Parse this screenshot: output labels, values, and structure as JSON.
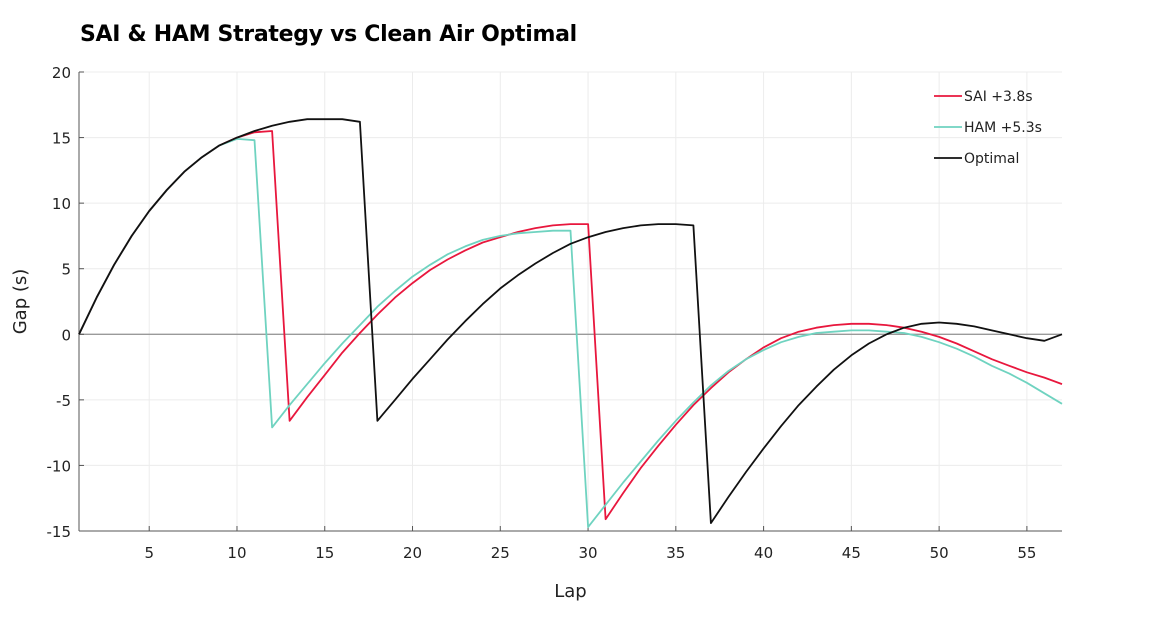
{
  "chart_data": {
    "type": "line",
    "title": "SAI & HAM Strategy vs Clean Air Optimal",
    "xlabel": "Lap",
    "ylabel": "Gap (s)",
    "xlim": [
      1,
      57
    ],
    "ylim": [
      -15,
      20
    ],
    "x_ticks": [
      5,
      10,
      15,
      20,
      25,
      30,
      35,
      40,
      45,
      50,
      55
    ],
    "y_ticks": [
      -15,
      -10,
      -5,
      0,
      5,
      10,
      15,
      20
    ],
    "grid": true,
    "legend_position": "top-right",
    "reference_line_y": 0,
    "series": [
      {
        "name": "SAI +3.8s",
        "color": "#e8173d",
        "points": [
          [
            1,
            0.0
          ],
          [
            2,
            2.8
          ],
          [
            3,
            5.3
          ],
          [
            4,
            7.5
          ],
          [
            5,
            9.4
          ],
          [
            6,
            11.0
          ],
          [
            7,
            12.4
          ],
          [
            8,
            13.5
          ],
          [
            9,
            14.4
          ],
          [
            10,
            15.0
          ],
          [
            11,
            15.4
          ],
          [
            12,
            15.5
          ],
          [
            13,
            -6.6
          ],
          [
            14,
            -4.8
          ],
          [
            15,
            -3.1
          ],
          [
            16,
            -1.4
          ],
          [
            17,
            0.1
          ],
          [
            18,
            1.5
          ],
          [
            19,
            2.8
          ],
          [
            20,
            3.9
          ],
          [
            21,
            4.9
          ],
          [
            22,
            5.7
          ],
          [
            23,
            6.4
          ],
          [
            24,
            7.0
          ],
          [
            25,
            7.4
          ],
          [
            26,
            7.8
          ],
          [
            27,
            8.1
          ],
          [
            28,
            8.3
          ],
          [
            29,
            8.4
          ],
          [
            30,
            8.4
          ],
          [
            31,
            -14.1
          ],
          [
            32,
            -12.1
          ],
          [
            33,
            -10.2
          ],
          [
            34,
            -8.5
          ],
          [
            35,
            -6.9
          ],
          [
            36,
            -5.4
          ],
          [
            37,
            -4.1
          ],
          [
            38,
            -2.9
          ],
          [
            39,
            -1.9
          ],
          [
            40,
            -1.0
          ],
          [
            41,
            -0.3
          ],
          [
            42,
            0.2
          ],
          [
            43,
            0.5
          ],
          [
            44,
            0.7
          ],
          [
            45,
            0.8
          ],
          [
            46,
            0.8
          ],
          [
            47,
            0.7
          ],
          [
            48,
            0.5
          ],
          [
            49,
            0.2
          ],
          [
            50,
            -0.2
          ],
          [
            51,
            -0.7
          ],
          [
            52,
            -1.3
          ],
          [
            53,
            -1.9
          ],
          [
            54,
            -2.4
          ],
          [
            55,
            -2.9
          ],
          [
            56,
            -3.3
          ],
          [
            57,
            -3.8
          ]
        ]
      },
      {
        "name": "HAM +5.3s",
        "color": "#6fd3c0",
        "points": [
          [
            1,
            0.0
          ],
          [
            2,
            2.8
          ],
          [
            3,
            5.3
          ],
          [
            4,
            7.5
          ],
          [
            5,
            9.4
          ],
          [
            6,
            11.0
          ],
          [
            7,
            12.4
          ],
          [
            8,
            13.5
          ],
          [
            9,
            14.4
          ],
          [
            10,
            14.9
          ],
          [
            11,
            14.8
          ],
          [
            12,
            -7.1
          ],
          [
            13,
            -5.4
          ],
          [
            14,
            -3.8
          ],
          [
            15,
            -2.2
          ],
          [
            16,
            -0.7
          ],
          [
            17,
            0.7
          ],
          [
            18,
            2.1
          ],
          [
            19,
            3.3
          ],
          [
            20,
            4.4
          ],
          [
            21,
            5.3
          ],
          [
            22,
            6.1
          ],
          [
            23,
            6.7
          ],
          [
            24,
            7.2
          ],
          [
            25,
            7.5
          ],
          [
            26,
            7.7
          ],
          [
            27,
            7.8
          ],
          [
            28,
            7.9
          ],
          [
            29,
            7.9
          ],
          [
            30,
            -14.7
          ],
          [
            31,
            -13.0
          ],
          [
            32,
            -11.3
          ],
          [
            33,
            -9.7
          ],
          [
            34,
            -8.1
          ],
          [
            35,
            -6.6
          ],
          [
            36,
            -5.2
          ],
          [
            37,
            -3.9
          ],
          [
            38,
            -2.8
          ],
          [
            39,
            -1.9
          ],
          [
            40,
            -1.2
          ],
          [
            41,
            -0.6
          ],
          [
            42,
            -0.2
          ],
          [
            43,
            0.1
          ],
          [
            44,
            0.2
          ],
          [
            45,
            0.3
          ],
          [
            46,
            0.3
          ],
          [
            47,
            0.2
          ],
          [
            48,
            0.1
          ],
          [
            49,
            -0.2
          ],
          [
            50,
            -0.6
          ],
          [
            51,
            -1.1
          ],
          [
            52,
            -1.7
          ],
          [
            53,
            -2.4
          ],
          [
            54,
            -3.0
          ],
          [
            55,
            -3.7
          ],
          [
            56,
            -4.5
          ],
          [
            57,
            -5.3
          ]
        ]
      },
      {
        "name": "Optimal",
        "color": "#111111",
        "points": [
          [
            1,
            0.0
          ],
          [
            2,
            2.8
          ],
          [
            3,
            5.3
          ],
          [
            4,
            7.5
          ],
          [
            5,
            9.4
          ],
          [
            6,
            11.0
          ],
          [
            7,
            12.4
          ],
          [
            8,
            13.5
          ],
          [
            9,
            14.4
          ],
          [
            10,
            15.0
          ],
          [
            11,
            15.5
          ],
          [
            12,
            15.9
          ],
          [
            13,
            16.2
          ],
          [
            14,
            16.4
          ],
          [
            15,
            16.4
          ],
          [
            16,
            16.4
          ],
          [
            17,
            16.2
          ],
          [
            18,
            -6.6
          ],
          [
            19,
            -5.0
          ],
          [
            20,
            -3.4
          ],
          [
            21,
            -1.9
          ],
          [
            22,
            -0.4
          ],
          [
            23,
            1.0
          ],
          [
            24,
            2.3
          ],
          [
            25,
            3.5
          ],
          [
            26,
            4.5
          ],
          [
            27,
            5.4
          ],
          [
            28,
            6.2
          ],
          [
            29,
            6.9
          ],
          [
            30,
            7.4
          ],
          [
            31,
            7.8
          ],
          [
            32,
            8.1
          ],
          [
            33,
            8.3
          ],
          [
            34,
            8.4
          ],
          [
            35,
            8.4
          ],
          [
            36,
            8.3
          ],
          [
            37,
            -14.4
          ],
          [
            38,
            -12.4
          ],
          [
            39,
            -10.5
          ],
          [
            40,
            -8.7
          ],
          [
            41,
            -7.0
          ],
          [
            42,
            -5.4
          ],
          [
            43,
            -4.0
          ],
          [
            44,
            -2.7
          ],
          [
            45,
            -1.6
          ],
          [
            46,
            -0.7
          ],
          [
            47,
            0.0
          ],
          [
            48,
            0.5
          ],
          [
            49,
            0.8
          ],
          [
            50,
            0.9
          ],
          [
            51,
            0.8
          ],
          [
            52,
            0.6
          ],
          [
            53,
            0.3
          ],
          [
            54,
            0.0
          ],
          [
            55,
            -0.3
          ],
          [
            56,
            -0.5
          ],
          [
            57,
            0.0
          ]
        ]
      }
    ]
  }
}
